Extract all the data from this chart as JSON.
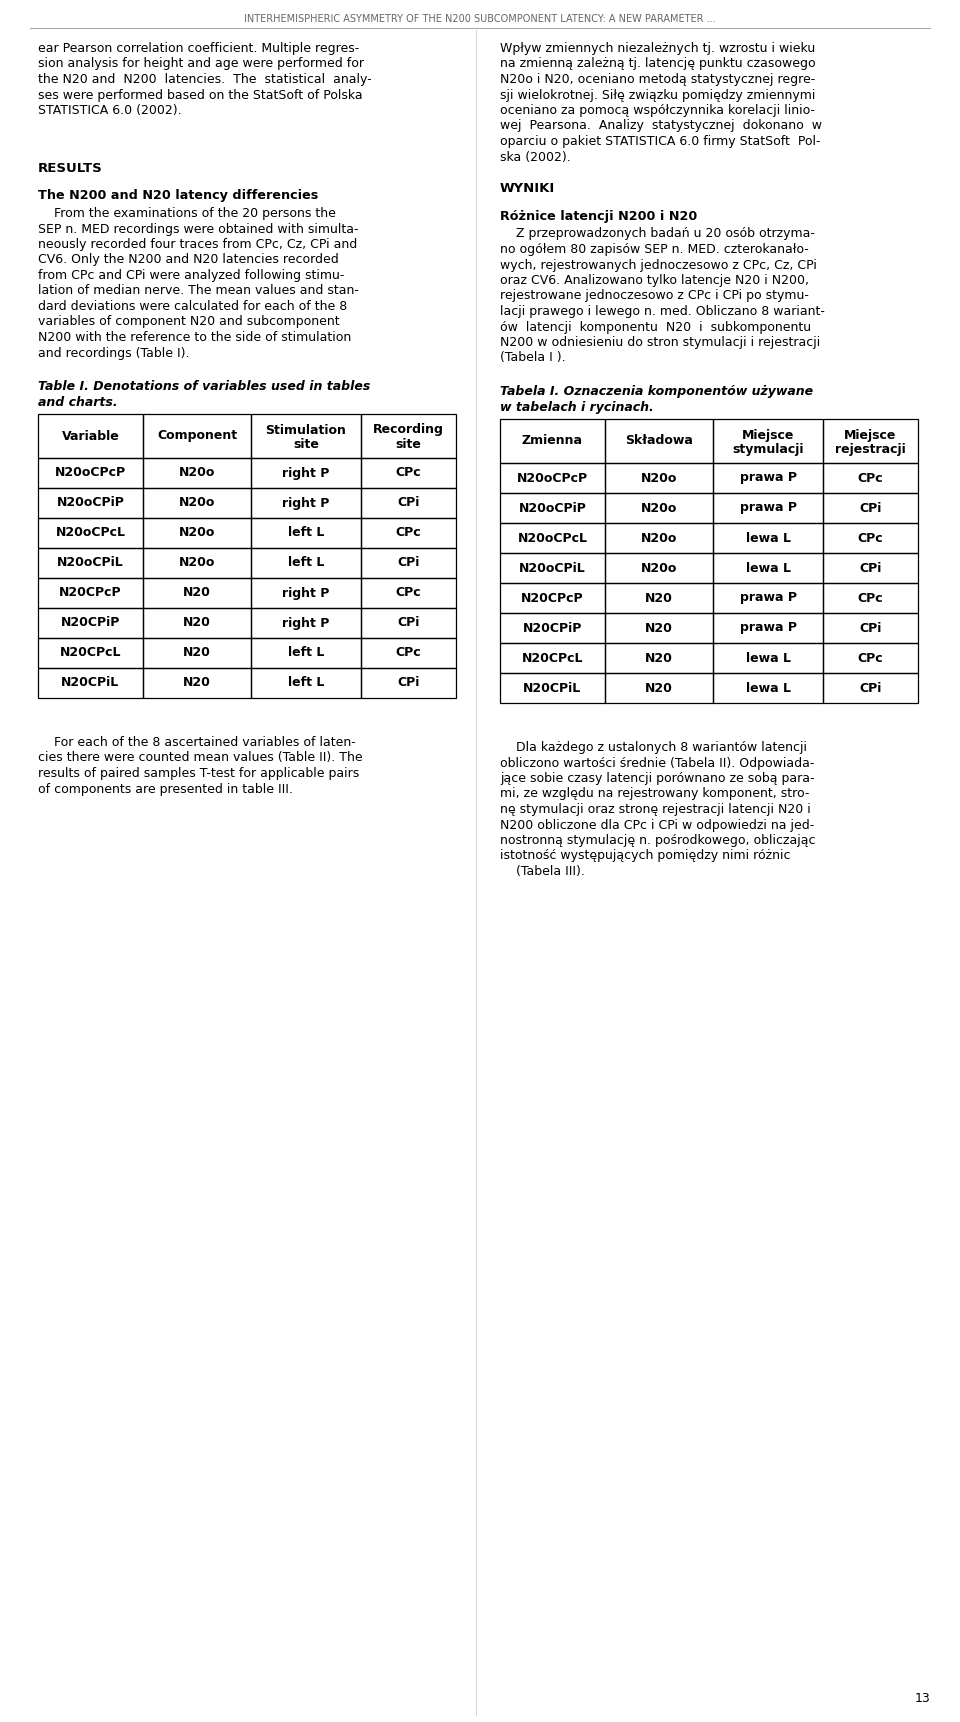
{
  "header_text": "INTERHEMISPHERIC ASYMMETRY OF THE N200 SUBCOMPONENT LATENCY: A NEW PARAMETER ...",
  "page_number": "13",
  "bg_color": "#ffffff",
  "text_color": "#000000",
  "header_color": "#666666",
  "separator_color": "#aaaaaa",
  "left_col": {
    "intro_lines": [
      "ear Pearson correlation coefficient. Multiple regres-",
      "sion analysis for height and age were performed for",
      "the N20 and  N200  latencies.  The  statistical  analy-",
      "ses were performed based on the StatSoft of Polska",
      "STATISTICA 6.0 (2002)."
    ],
    "results_heading": "RESULTS",
    "section_heading": "The N200 and N20 latency differencies",
    "section_lines": [
      "    From the examinations of the 20 persons the",
      "SEP n. MED recordings were obtained with simulta-",
      "neously recorded four traces from CPc, Cz, CPi and",
      "CV6. Only the N200 and N20 latencies recorded",
      "from CPc and CPi were analyzed following stimu-",
      "lation of median nerve. The mean values and stan-",
      "dard deviations were calculated for each of the 8",
      "variables of component N20 and subcomponent",
      "N200 with the reference to the side of stimulation",
      "and recordings (Table I)."
    ],
    "table_caption_lines": [
      "Table I. Denotations of variables used in tables",
      "and charts."
    ],
    "table_headers": [
      "Variable",
      "Component",
      "Stimulation\nsite",
      "Recording\nsite"
    ],
    "table_rows": [
      [
        "N20oCPcP",
        "N20o",
        "right P",
        "CPc"
      ],
      [
        "N20oCPiP",
        "N20o",
        "right P",
        "CPi"
      ],
      [
        "N20oCPcL",
        "N20o",
        "left L",
        "CPc"
      ],
      [
        "N20oCPiL",
        "N20o",
        "left L",
        "CPi"
      ],
      [
        "N20CPcP",
        "N20",
        "right P",
        "CPc"
      ],
      [
        "N20CPiP",
        "N20",
        "right P",
        "CPi"
      ],
      [
        "N20CPcL",
        "N20",
        "left L",
        "CPc"
      ],
      [
        "N20CPiL",
        "N20",
        "left L",
        "CPi"
      ]
    ],
    "footer_lines": [
      "    For each of the 8 ascertained variables of laten-",
      "cies there were counted mean values (Table II). The",
      "results of paired samples T-test for applicable pairs",
      "of components are presented in table III."
    ]
  },
  "right_col": {
    "intro_lines": [
      "Wpływ zmiennych niezależnych tj. wzrostu i wieku",
      "na zmienną zależną tj. latencję punktu czasowego",
      "N20o i N20, oceniano metodą statystycznej regre-",
      "sji wielokrotnej. Siłę związku pomiędzy zmiennymi",
      "oceniano za pomocą współczynnika korelacji linio-",
      "wej  Pearsona.  Analizy  statystycznej  dokonano  w",
      "oparciu o pakiet STATISTICA 6.0 firmy StatSoft  Pol-",
      "ska (2002)."
    ],
    "results_heading": "WYNIKI",
    "section_heading": "Różnice latencji N200 i N20",
    "section_lines": [
      "    Z przeprowadzonych badań u 20 osób otrzyma-",
      "no ogółem 80 zapisów SEP n. MED. czterokanało-",
      "wych, rejestrowanych jednoczesowo z CPc, Cz, CPi",
      "oraz CV6. Analizowano tylko latencje N20 i N200,",
      "rejestrowane jednoczesowo z CPc i CPi po stymu-",
      "lacji prawego i lewego n. med. Obliczano 8 wariant-",
      "ów  latencji  komponentu  N20  i  subkomponentu",
      "N200 w odniesieniu do stron stymulacji i rejestracji",
      "(Tabela I )."
    ],
    "table_caption_lines": [
      "Tabela I. Oznaczenia komponentów używane",
      "w tabelach i rycinach."
    ],
    "table_headers": [
      "Zmienna",
      "Składowa",
      "Miejsce\nstymulacji",
      "Miejsce\nrejestracji"
    ],
    "table_rows": [
      [
        "N20oCPcP",
        "N20o",
        "prawa P",
        "CPc"
      ],
      [
        "N20oCPiP",
        "N20o",
        "prawa P",
        "CPi"
      ],
      [
        "N20oCPcL",
        "N20o",
        "lewa L",
        "CPc"
      ],
      [
        "N20oCPiL",
        "N20o",
        "lewa L",
        "CPi"
      ],
      [
        "N20CPcP",
        "N20",
        "prawa P",
        "CPc"
      ],
      [
        "N20CPiP",
        "N20",
        "prawa P",
        "CPi"
      ],
      [
        "N20CPcL",
        "N20",
        "lewa L",
        "CPc"
      ],
      [
        "N20CPiL",
        "N20",
        "lewa L",
        "CPi"
      ]
    ],
    "footer_lines": [
      "    Dla każdego z ustalonych 8 wariantów latencji",
      "obliczono wartości średnie (Tabela II). Odpowiada-",
      "jące sobie czasy latencji porównano ze sobą para-",
      "mi, ze względu na rejestrowany komponent, stro-",
      "nę stymulacji oraz stronę rejestracji latencji N20 i",
      "N200 obliczone dla CPc i CPi w odpowiedzi na jed-",
      "nostronną stymulację n. pośrodkowego, obliczając",
      "istotność występujących pomiędzy nimi różnic",
      "    (Tabela III)."
    ]
  }
}
